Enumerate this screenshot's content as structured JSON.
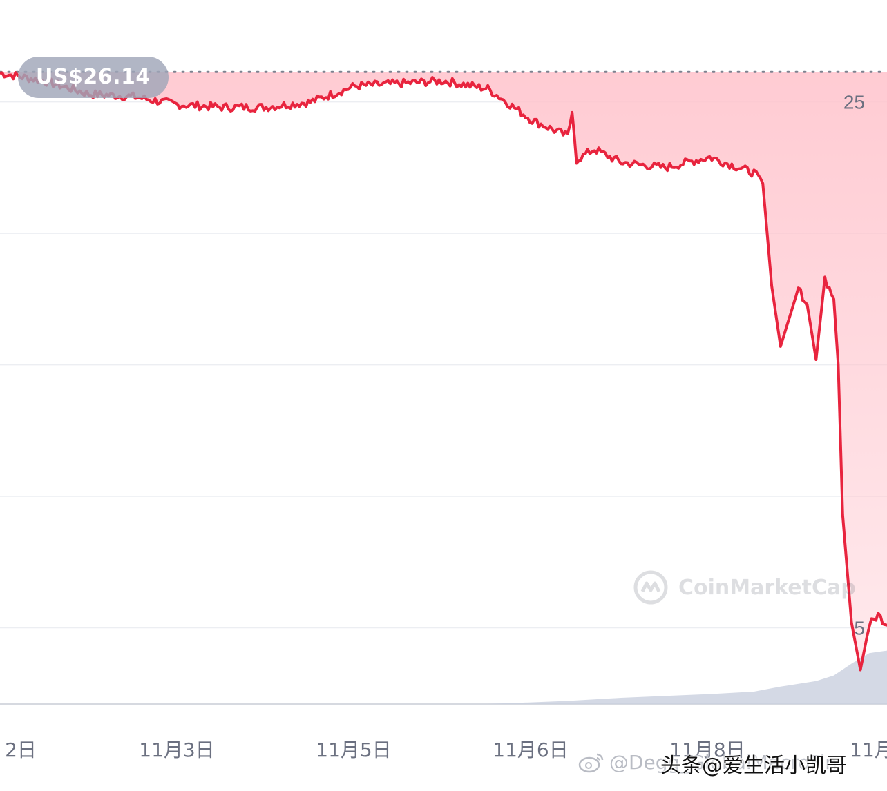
{
  "chart_data": {
    "type": "line",
    "price_badge": "US$26.14",
    "reference_line_value": 26.14,
    "ylim": [
      2.1,
      27.3
    ],
    "y_ticks": [
      5,
      10,
      15,
      20,
      25
    ],
    "y_tick_labels": [
      "5",
      "",
      "",
      "",
      "25"
    ],
    "x_tick_labels": [
      "2日",
      "11月3日",
      "11月5日",
      "11月6日",
      "11月8日",
      "11月"
    ],
    "colors": {
      "line": "#e8243e",
      "area": "#ffc2cb",
      "volume": "#c9cfdf",
      "badge": "#a0a6b8"
    },
    "series": [
      {
        "x": [
          0,
          0.05,
          0.1,
          0.15,
          0.2,
          0.25,
          0.3,
          0.35,
          0.4,
          0.45,
          0.5,
          0.55,
          0.6,
          0.64,
          0.645,
          0.65,
          0.67,
          0.7,
          0.75,
          0.8,
          0.85,
          0.86,
          0.87,
          0.88,
          0.9,
          0.91,
          0.92,
          0.93,
          0.94,
          0.945,
          0.95,
          0.96,
          0.97,
          0.98,
          0.99,
          1.0
        ],
        "values": [
          26.1,
          25.8,
          25.3,
          25.2,
          24.9,
          24.8,
          24.8,
          25.0,
          25.6,
          25.7,
          25.8,
          25.5,
          24.3,
          23.7,
          24.6,
          22.8,
          23.2,
          22.7,
          22.5,
          22.9,
          22.3,
          21.9,
          18.0,
          15.7,
          17.9,
          17.3,
          15.2,
          18.3,
          17.5,
          15.0,
          9.3,
          5.2,
          3.4,
          5.1,
          5.5,
          5.1
        ]
      }
    ],
    "volume": {
      "x": [
        0,
        0.55,
        0.64,
        0.7,
        0.8,
        0.85,
        0.88,
        0.92,
        0.94,
        0.96,
        0.98,
        1.0
      ],
      "values": [
        0,
        0,
        0.5,
        1.0,
        1.6,
        2.0,
        2.8,
        3.7,
        4.6,
        6.5,
        8.2,
        8.6
      ]
    }
  },
  "watermark": {
    "brand": "CoinMarketCap",
    "logo_icon": "coinmarketcap-logo-icon"
  },
  "credits": {
    "weibo_handle": "@Degg_GlobalMacroFin",
    "toutiao": "头条@爱生活小凯哥",
    "weibo_icon": "weibo-logo-icon"
  }
}
